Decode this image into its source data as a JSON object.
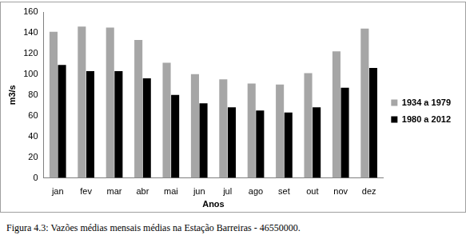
{
  "chart_data": {
    "type": "bar",
    "caption": "Figura 4.3: Vazões médias mensais médias na Estação Barreiras - 46550000.",
    "x_label": "Anos",
    "y_label": "m3/s",
    "categories": [
      "jan",
      "fev",
      "mar",
      "abr",
      "mai",
      "jun",
      "jul",
      "ago",
      "set",
      "out",
      "nov",
      "dez"
    ],
    "series": [
      {
        "name": "1934 a 1979",
        "color": "#a6a6a6",
        "values": [
          141,
          146,
          145,
          133,
          111,
          100,
          95,
          91,
          90,
          101,
          122,
          144
        ]
      },
      {
        "name": "1980 a 2012",
        "color": "#000000",
        "values": [
          109,
          103,
          103,
          96,
          80,
          72,
          68,
          65,
          63,
          68,
          87,
          106
        ]
      }
    ],
    "ylim": [
      0,
      160
    ],
    "yticks": [
      0,
      20,
      40,
      60,
      80,
      100,
      120,
      140,
      160
    ],
    "grid": false,
    "legend": "right"
  }
}
